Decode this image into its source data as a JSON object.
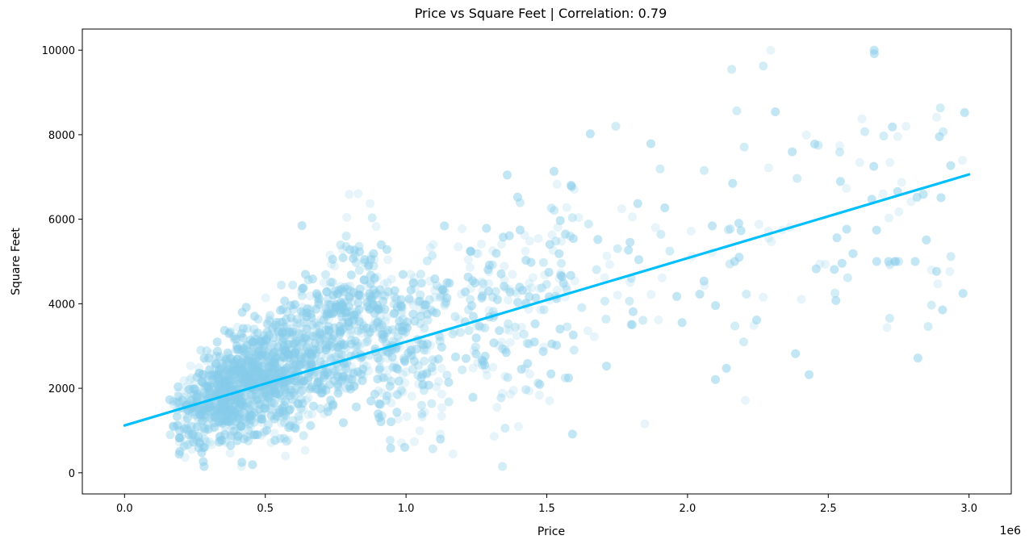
{
  "chart_data": {
    "type": "scatter",
    "title": "Price vs Square Feet | Correlation: 0.79",
    "xlabel": "Price",
    "ylabel": "Square Feet",
    "x_offset_label": "1e6",
    "xlim": [
      -150000,
      3150000
    ],
    "ylim": [
      -500,
      10500
    ],
    "xticks": [
      0,
      500000,
      1000000,
      1500000,
      2000000,
      2500000,
      3000000
    ],
    "xtick_labels": [
      "0.0",
      "0.5",
      "1.0",
      "1.5",
      "2.0",
      "2.5",
      "3.0"
    ],
    "yticks": [
      0,
      2000,
      4000,
      6000,
      8000,
      10000
    ],
    "ytick_labels": [
      "0",
      "2000",
      "4000",
      "6000",
      "8000",
      "10000"
    ],
    "grid": false,
    "point_color": "#87ceeb",
    "point_alpha": 0.2,
    "line_color": "#00bfff",
    "series": [
      {
        "type": "regression_line",
        "x": [
          0,
          3000000
        ],
        "y": [
          1120,
          7060
        ]
      }
    ]
  }
}
